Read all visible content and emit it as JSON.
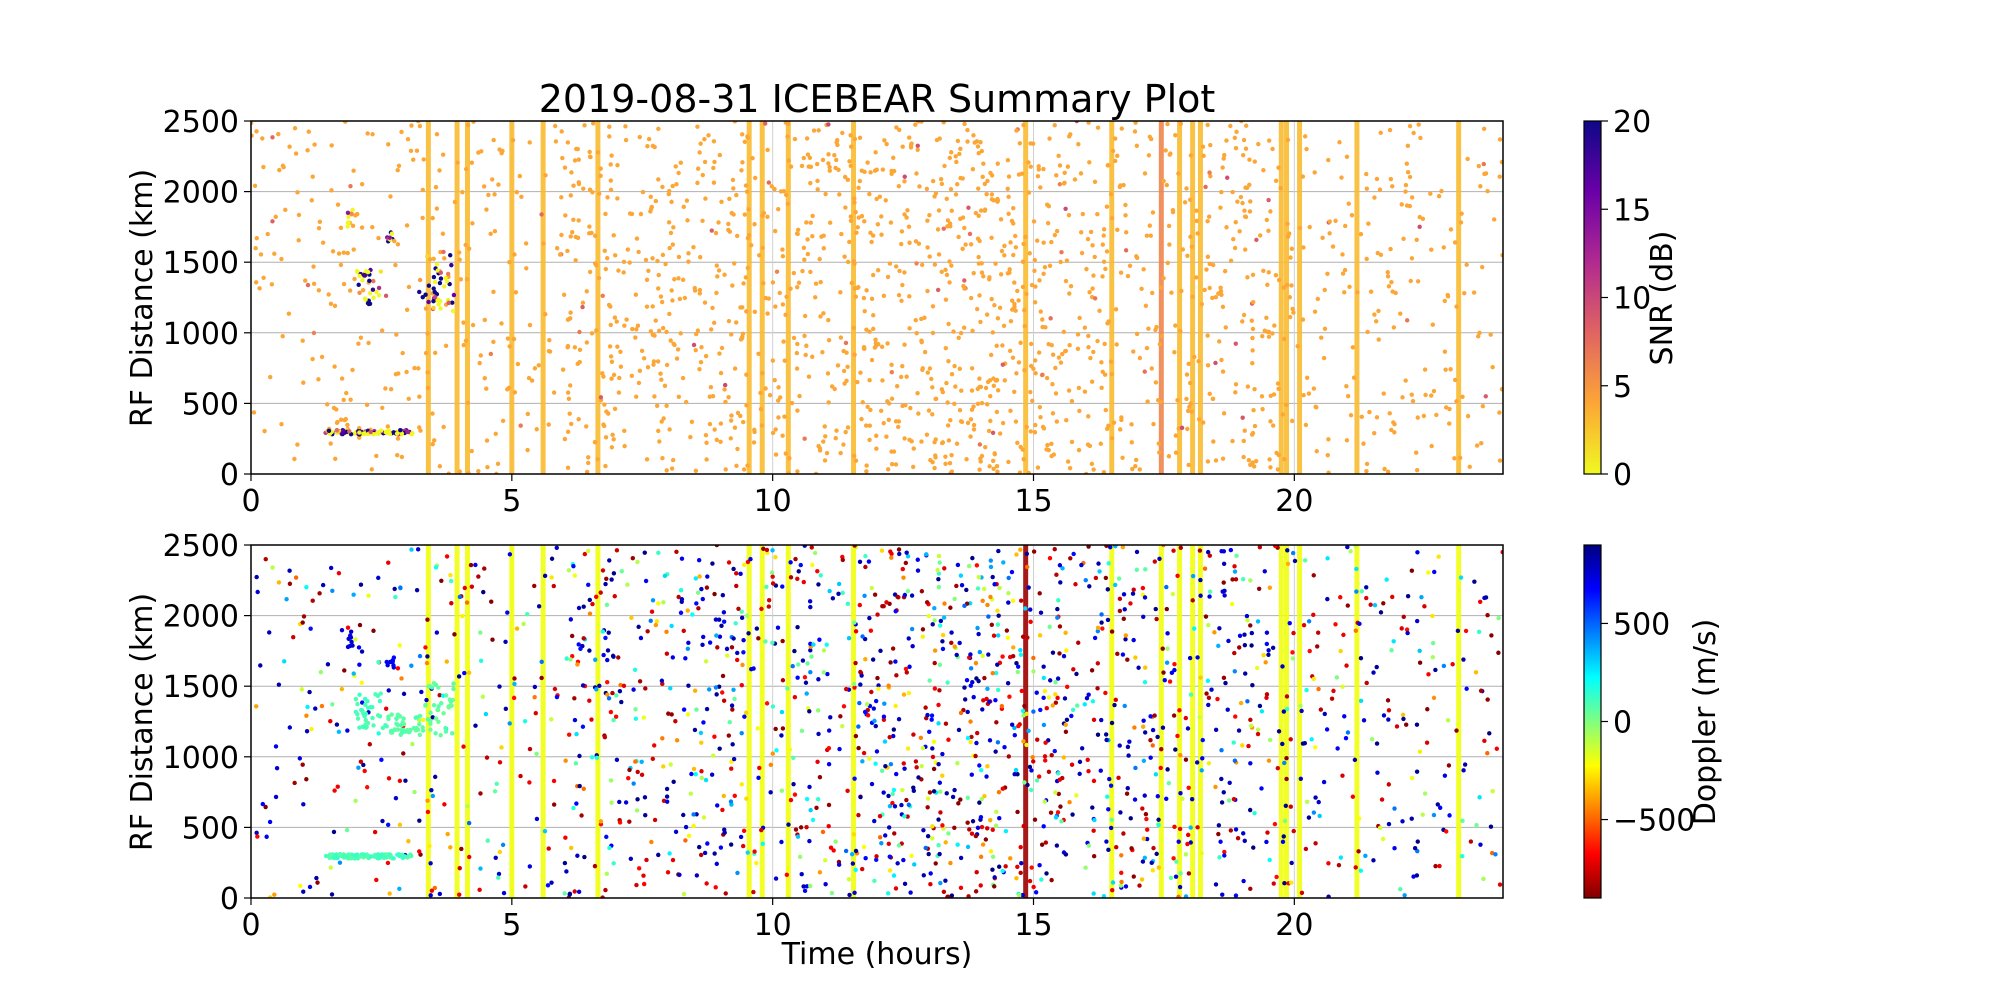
{
  "title": "2019-08-31 ICEBEAR Summary Plot",
  "chart_data": [
    {
      "type": "scatter",
      "panel": "top",
      "ylabel": "RF Distance (km)",
      "xlabel": "",
      "xlim": [
        0,
        24
      ],
      "ylim": [
        0,
        2500
      ],
      "xticks": [
        0,
        5,
        10,
        15,
        20
      ],
      "yticks": [
        0,
        500,
        1000,
        1500,
        2000,
        2500
      ],
      "grid": "horizontal",
      "colorbar": {
        "label": "SNR (dB)",
        "range": [
          0,
          20
        ],
        "ticks": [
          0,
          5,
          10,
          15,
          20
        ],
        "colormap": "plasma_r",
        "stops": [
          "#f0f921",
          "#fca636",
          "#e16462",
          "#b12a90",
          "#6a00a8",
          "#0d0887"
        ]
      },
      "dominant_point_color": "#fca636",
      "vertical_bands": [
        {
          "x": 3.4,
          "value": 3
        },
        {
          "x": 3.95,
          "value": 3
        },
        {
          "x": 4.15,
          "value": 3
        },
        {
          "x": 5.0,
          "value": 3
        },
        {
          "x": 5.6,
          "value": 3
        },
        {
          "x": 6.65,
          "value": 3
        },
        {
          "x": 9.55,
          "value": 3
        },
        {
          "x": 9.8,
          "value": 3
        },
        {
          "x": 10.3,
          "value": 3
        },
        {
          "x": 11.55,
          "value": 3
        },
        {
          "x": 14.85,
          "value": 3
        },
        {
          "x": 16.5,
          "value": 3
        },
        {
          "x": 17.45,
          "value": 6
        },
        {
          "x": 17.8,
          "value": 3
        },
        {
          "x": 18.05,
          "value": 3
        },
        {
          "x": 18.2,
          "value": 3
        },
        {
          "x": 19.75,
          "value": 3
        },
        {
          "x": 19.85,
          "value": 3
        },
        {
          "x": 20.1,
          "value": 3
        },
        {
          "x": 21.2,
          "value": 3
        },
        {
          "x": 23.15,
          "value": 3
        }
      ],
      "clusters": [
        {
          "x": [
            1.85,
            1.95
          ],
          "y": [
            1750,
            1900
          ],
          "value": 3
        },
        {
          "x": [
            2.0,
            2.5
          ],
          "y": [
            1200,
            1450
          ],
          "value": 3
        },
        {
          "x": [
            2.6,
            2.75
          ],
          "y": [
            1620,
            1720
          ],
          "value": 3
        },
        {
          "x": [
            3.2,
            3.9
          ],
          "y": [
            1150,
            1550
          ],
          "value": 3
        },
        {
          "x": [
            1.4,
            3.1
          ],
          "y": [
            280,
            310
          ],
          "value": 3
        }
      ]
    },
    {
      "type": "scatter",
      "panel": "bottom",
      "ylabel": "RF Distance (km)",
      "xlabel": "Time (hours)",
      "xlim": [
        0,
        24
      ],
      "ylim": [
        0,
        2500
      ],
      "xticks": [
        0,
        5,
        10,
        15,
        20
      ],
      "yticks": [
        0,
        500,
        1000,
        1500,
        2000,
        2500
      ],
      "grid": "horizontal",
      "colorbar": {
        "label": "Doppler (m/s)",
        "range": [
          -900,
          900
        ],
        "ticks": [
          -500,
          0,
          500
        ],
        "tick_labels": [
          "−500",
          "0",
          "500"
        ],
        "colormap": "jet_r",
        "stops": [
          "#800000",
          "#ff0000",
          "#ff8000",
          "#ffff00",
          "#80ff80",
          "#00ffff",
          "#0080ff",
          "#0000ff",
          "#000080"
        ]
      },
      "vertical_bands": [
        {
          "x": 3.4,
          "value": -200
        },
        {
          "x": 3.95,
          "value": -200
        },
        {
          "x": 4.15,
          "value": -200
        },
        {
          "x": 5.0,
          "value": -200
        },
        {
          "x": 5.6,
          "value": -200
        },
        {
          "x": 6.65,
          "value": -200
        },
        {
          "x": 9.55,
          "value": -200
        },
        {
          "x": 9.8,
          "value": -200
        },
        {
          "x": 10.3,
          "value": -200
        },
        {
          "x": 11.55,
          "value": -200
        },
        {
          "x": 14.85,
          "value": -850
        },
        {
          "x": 16.5,
          "value": -200
        },
        {
          "x": 17.45,
          "value": -200
        },
        {
          "x": 17.8,
          "value": -200
        },
        {
          "x": 18.05,
          "value": -200
        },
        {
          "x": 18.2,
          "value": -200
        },
        {
          "x": 19.75,
          "value": -200
        },
        {
          "x": 19.85,
          "value": -200
        },
        {
          "x": 20.1,
          "value": -200
        },
        {
          "x": 21.2,
          "value": -200
        },
        {
          "x": 23.15,
          "value": -200
        }
      ],
      "clusters": [
        {
          "x": [
            1.85,
            1.95
          ],
          "y": [
            1750,
            1900
          ],
          "value": 750
        },
        {
          "x": [
            2.6,
            2.75
          ],
          "y": [
            1620,
            1720
          ],
          "value": 700
        },
        {
          "x": [
            2.0,
            2.6
          ],
          "y": [
            1200,
            1450
          ],
          "value": 100
        },
        {
          "x": [
            2.6,
            3.3
          ],
          "y": [
            1150,
            1300
          ],
          "value": 80
        },
        {
          "x": [
            3.3,
            3.9
          ],
          "y": [
            1150,
            1550
          ],
          "value": 60
        },
        {
          "x": [
            1.4,
            3.1
          ],
          "y": [
            280,
            310
          ],
          "value": 100
        }
      ]
    }
  ]
}
